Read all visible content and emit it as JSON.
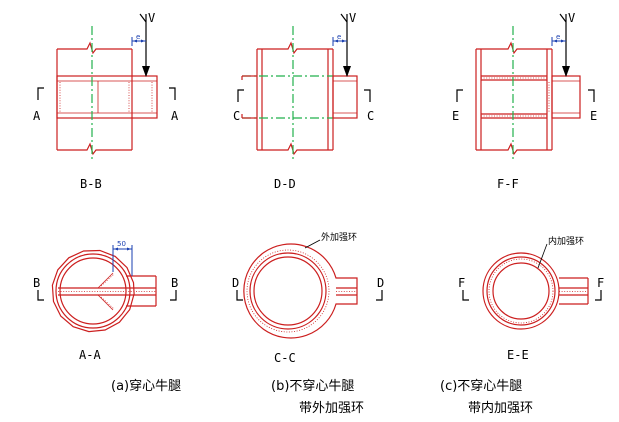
{
  "views": [
    {
      "section": "B-B",
      "cut": "A",
      "load": "V"
    },
    {
      "section": "D-D",
      "cut": "C",
      "load": "V"
    },
    {
      "section": "F-F",
      "cut": "E",
      "load": "V"
    }
  ],
  "plans": [
    {
      "section": "A-A",
      "cut": "B",
      "dim": "50",
      "note": ""
    },
    {
      "section": "C-C",
      "cut": "D",
      "dim": "",
      "note": "外加强环"
    },
    {
      "section": "E-E",
      "cut": "F",
      "dim": "",
      "note": "内加强环"
    }
  ],
  "captions": [
    {
      "line1": "(a)穿心牛腿",
      "line2": ""
    },
    {
      "line1": "(b)不穿心牛腿",
      "line2": "带外加强环"
    },
    {
      "line1": "(c)不穿心牛腿",
      "line2": "带内加强环"
    }
  ],
  "colors": {
    "steel": "#cc1f1f",
    "centerline": "#22b14c",
    "dimension": "#1a3fb0"
  }
}
